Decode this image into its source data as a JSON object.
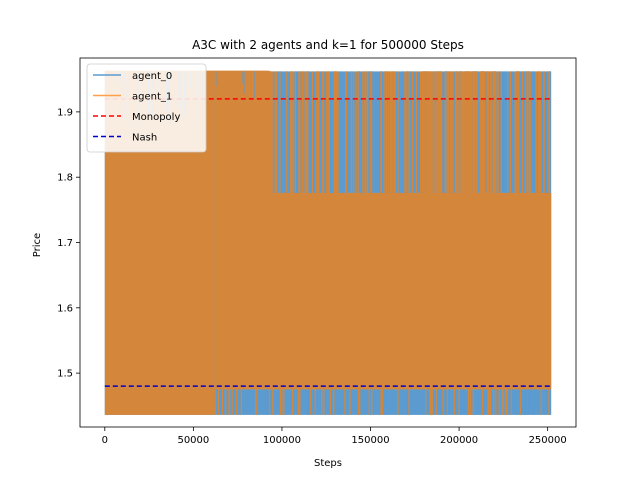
{
  "chart_data": {
    "type": "line",
    "title": "A3C with 2 agents and k=1 for 500000 Steps",
    "xlabel": "Steps",
    "ylabel": "Price",
    "xlim": [
      -14000,
      266000
    ],
    "ylim": [
      1.4175,
      1.9825
    ],
    "xticks": [
      0,
      50000,
      100000,
      150000,
      200000,
      250000
    ],
    "xtick_labels": [
      "0",
      "50000",
      "100000",
      "150000",
      "200000",
      "250000"
    ],
    "yticks": [
      1.5,
      1.6,
      1.7,
      1.8,
      1.9
    ],
    "ytick_labels": [
      "1.5",
      "1.6",
      "1.7",
      "1.8",
      "1.9"
    ],
    "grid": false,
    "legend_position": "upper-left",
    "series": [
      {
        "name": "agent_0",
        "color": "#5b9bd0",
        "x_range": [
          0,
          252000
        ],
        "price_levels": [
          1.436,
          1.475,
          1.627,
          1.776,
          1.962
        ],
        "note_band_main": [
          1.436,
          1.962
        ]
      },
      {
        "name": "agent_1",
        "color": "#ff9f4a",
        "x_range": [
          0,
          252000
        ],
        "price_levels": [
          1.436,
          1.475,
          1.627,
          1.776,
          1.962
        ],
        "band_main": [
          1.436,
          1.962
        ]
      }
    ],
    "reference_lines": [
      {
        "name": "Monopoly",
        "value": 1.92,
        "color": "#ff0000",
        "style": "dashed",
        "x_range": [
          0,
          252000
        ]
      },
      {
        "name": "Nash",
        "value": 1.48,
        "color": "#0000cc",
        "style": "dashed",
        "x_range": [
          0,
          252000
        ]
      }
    ]
  }
}
